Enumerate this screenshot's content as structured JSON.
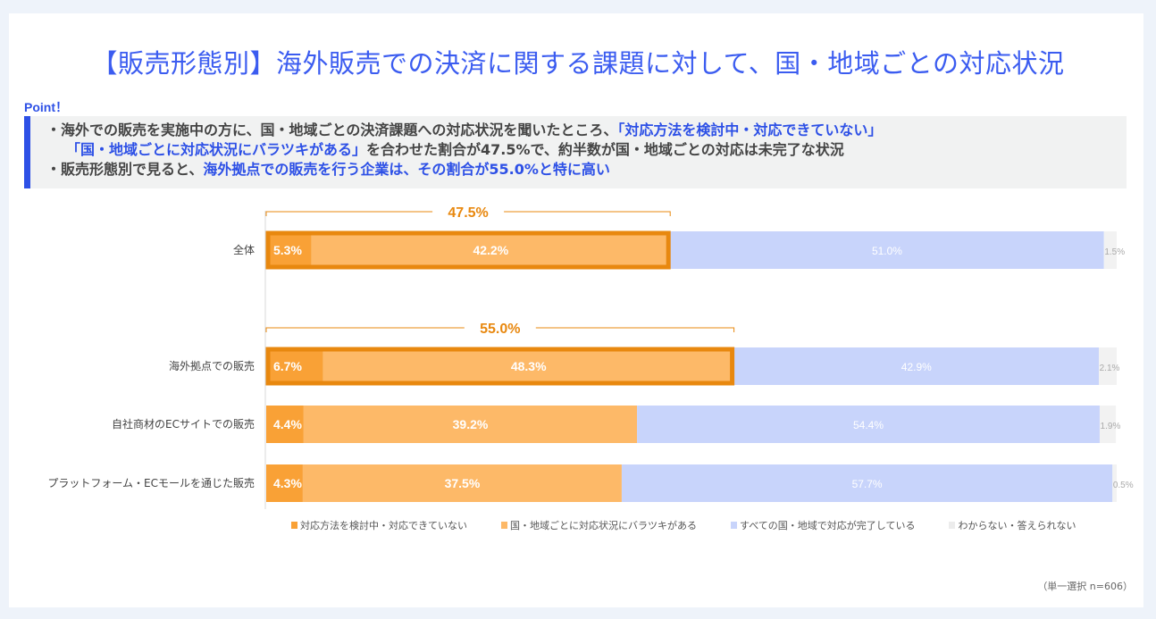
{
  "title": "【販売形態別】海外販売での決済に関する課題に対して、国・地域ごとの対応状況",
  "point": {
    "label": "Point！",
    "lines": [
      [
        {
          "t": "・海外での販売を実施中の方に、国・地域ごとの決済課題への対応状況を聞いたところ、",
          "hl": false
        },
        {
          "t": "「対応方法を検討中・対応できていない」",
          "hl": true
        }
      ],
      [
        {
          "t": "「国・地域ごとに対応状況にバラツキがある」",
          "hl": true
        },
        {
          "t": "を合わせた割合が47.5%で、約半数が国・地域ごとの対応は未完了な状況",
          "hl": false
        }
      ],
      [
        {
          "t": "・販売形態別で見ると、",
          "hl": false
        },
        {
          "t": "海外拠点での販売を行う企業は、その割合が55.0%と特に高い",
          "hl": true
        }
      ]
    ]
  },
  "chart_data": {
    "type": "bar",
    "orientation": "horizontal",
    "stacked": true,
    "percent": true,
    "xlim": [
      0,
      100
    ],
    "categories": [
      "全体",
      "海外拠点での販売",
      "自社商材のECサイトでの販売",
      "プラットフォーム・ECモールを通じた販売"
    ],
    "series": [
      {
        "name": "対応方法を検討中・対応できていない",
        "color": "#f9a136",
        "values": [
          5.3,
          6.7,
          4.4,
          4.3
        ]
      },
      {
        "name": "国・地域ごとに対応状況にバラツキがある",
        "color": "#fdb968",
        "values": [
          42.2,
          48.3,
          39.2,
          37.5
        ]
      },
      {
        "name": "すべての国・地域で対応が完了している",
        "color": "#c8d4fb",
        "values": [
          51.0,
          42.9,
          54.4,
          57.7
        ]
      },
      {
        "name": "わからない・答えられない",
        "color": "#f2f2f2",
        "values": [
          1.5,
          2.1,
          1.9,
          0.5
        ]
      }
    ],
    "labels": [
      [
        "5.3%",
        "42.2%",
        "51.0%",
        "1.5%"
      ],
      [
        "6.7%",
        "48.3%",
        "42.9%",
        "2.1%"
      ],
      [
        "4.4%",
        "39.2%",
        "54.4%",
        "1.9%"
      ],
      [
        "4.3%",
        "37.5%",
        "57.7%",
        "0.5%"
      ]
    ],
    "highlights": [
      {
        "category": "全体",
        "total": 47.5,
        "label": "47.5%"
      },
      {
        "category": "海外拠点での販売",
        "total": 55.0,
        "label": "55.0%"
      }
    ],
    "highlight_color": "#e8880f",
    "legend_position": "bottom"
  },
  "note": "（単一選択 n=606）"
}
